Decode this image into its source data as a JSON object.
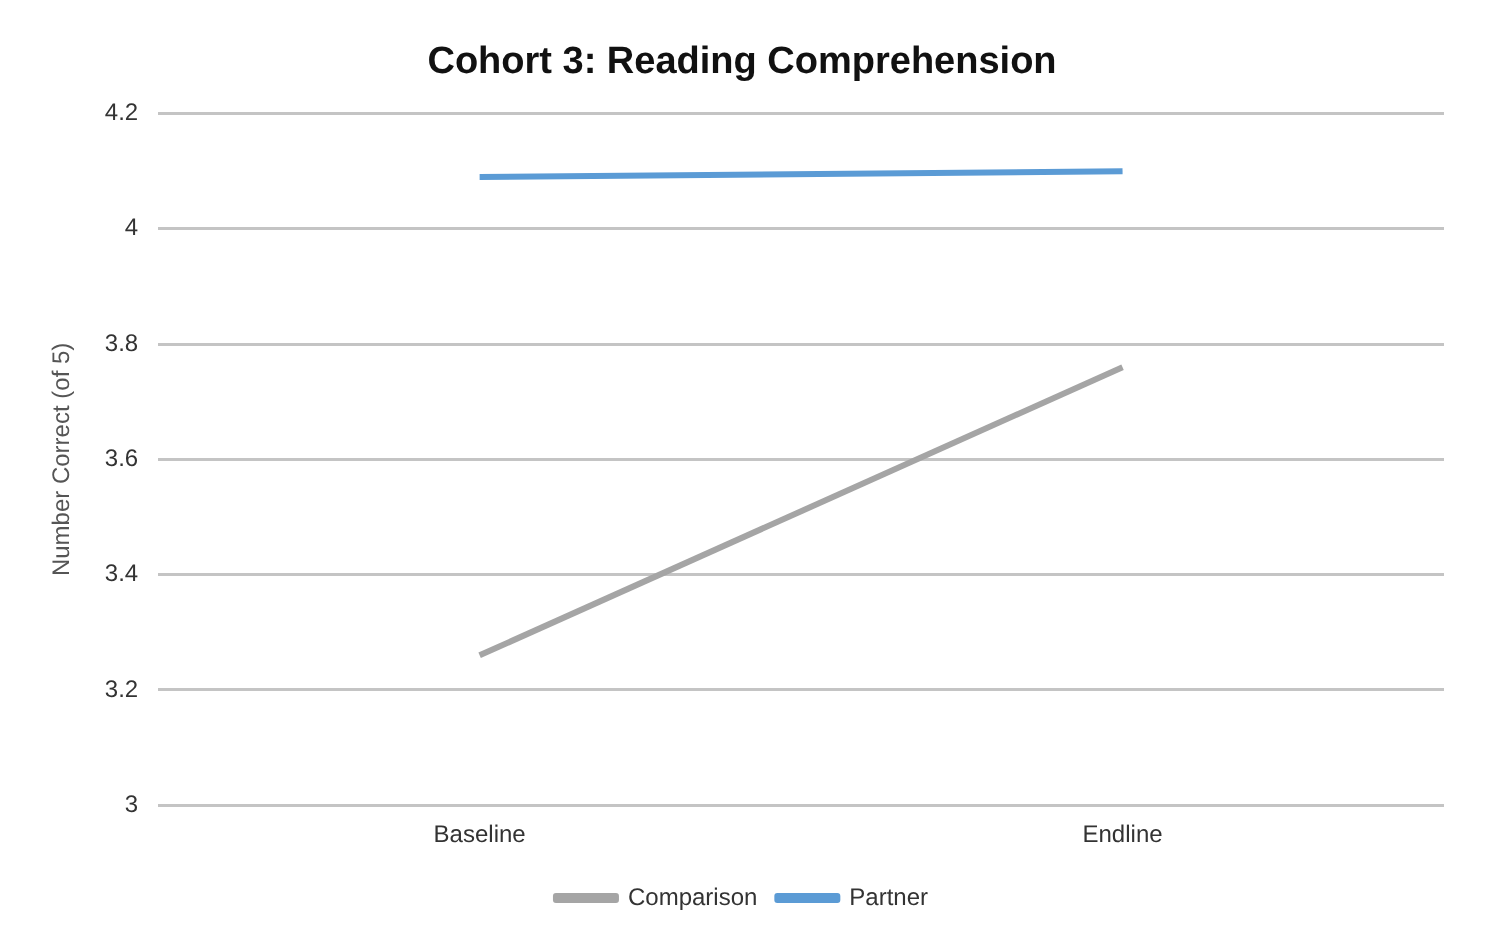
{
  "chart_data": {
    "type": "line",
    "title": "Cohort 3: Reading Comprehension",
    "ylabel": "Number Correct (of 5)",
    "categories": [
      "Baseline",
      "Endline"
    ],
    "series": [
      {
        "name": "Comparison",
        "color": "#a5a5a5",
        "values": [
          3.26,
          3.76
        ]
      },
      {
        "name": "Partner",
        "color": "#5b9bd5",
        "values": [
          4.09,
          4.1
        ]
      }
    ],
    "ylim": [
      3,
      4.2
    ],
    "yticks": [
      3,
      3.2,
      3.4,
      3.6,
      3.8,
      4,
      4.2
    ],
    "grid": "y",
    "legend": "bottom",
    "marker": "none",
    "line_style": "solid"
  }
}
